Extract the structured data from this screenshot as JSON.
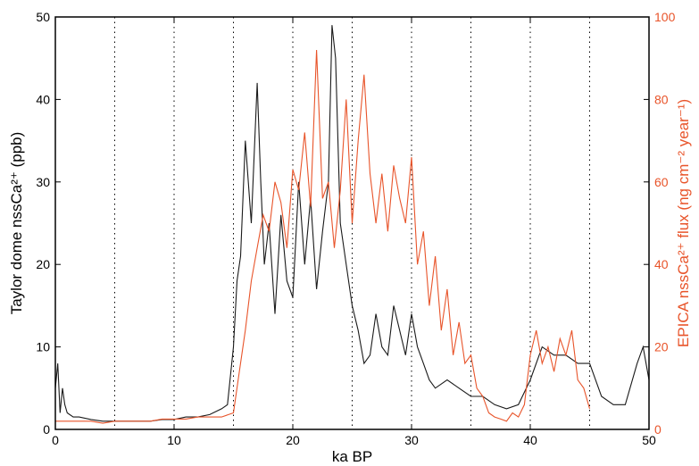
{
  "chart_data": {
    "type": "line",
    "title": "",
    "xlabel": "ka BP",
    "ylabel_left": "Taylor dome nssCa²⁺ (ppb)",
    "ylabel_right": "EPICA nssCa²⁺ flux (ng cm⁻² year⁻¹)",
    "xlim": [
      0,
      50
    ],
    "ylim_left": [
      0,
      50
    ],
    "ylim_right": [
      0,
      100
    ],
    "x_ticks": [
      "0",
      "10",
      "20",
      "30",
      "40",
      "50"
    ],
    "y_left_ticks": [
      "0",
      "10",
      "20",
      "30",
      "40",
      "50"
    ],
    "y_right_ticks": [
      "0",
      "20",
      "40",
      "60",
      "80",
      "100"
    ],
    "vertical_dotted_lines_at": [
      5,
      10,
      15,
      20,
      25,
      30,
      35,
      40,
      45
    ],
    "grid": false,
    "colors": {
      "left_series": "#1a1a1a",
      "right_series": "#e8542a",
      "frame": "#000000"
    },
    "series": [
      {
        "axis": "left",
        "color": "#1a1a1a",
        "x": [
          0,
          0.2,
          0.4,
          0.6,
          0.8,
          1,
          1.5,
          2,
          3,
          4,
          5,
          6,
          7,
          8,
          9,
          10,
          11,
          12,
          13,
          14,
          14.5,
          15,
          15.3,
          15.6,
          16,
          16.5,
          17,
          17.3,
          17.6,
          18,
          18.5,
          19,
          19.5,
          20,
          20.5,
          21,
          21.5,
          22,
          22.5,
          23,
          23.3,
          23.6,
          24,
          24.5,
          25,
          25.5,
          26,
          26.5,
          27,
          27.5,
          28,
          28.5,
          29,
          29.5,
          30,
          30.5,
          31,
          31.5,
          32,
          33,
          34,
          35,
          36,
          37,
          38,
          39,
          40,
          41,
          42,
          43,
          44,
          45,
          46,
          47,
          48,
          49,
          49.5,
          50
        ],
        "values": [
          5,
          8,
          2,
          5,
          3,
          2,
          1.5,
          1.5,
          1.2,
          1,
          1,
          1,
          1,
          1,
          1.2,
          1.2,
          1.5,
          1.5,
          1.8,
          2.5,
          3,
          10,
          18,
          21,
          35,
          25,
          42,
          30,
          20,
          25,
          14,
          26,
          18,
          16,
          30,
          20,
          28,
          17,
          24,
          30,
          49,
          45,
          25,
          20,
          15,
          12,
          8,
          9,
          14,
          10,
          9,
          15,
          12,
          9,
          14,
          10,
          8,
          6,
          5,
          6,
          5,
          4,
          4,
          3,
          2.5,
          3,
          6,
          10,
          9,
          9,
          8,
          8,
          4,
          3,
          3,
          8,
          10,
          6
        ]
      },
      {
        "axis": "right",
        "color": "#e8542a",
        "x": [
          0,
          1,
          2,
          3,
          4,
          5,
          6,
          7,
          8,
          9,
          10,
          11,
          12,
          13,
          14,
          15,
          15.5,
          16,
          16.5,
          17,
          17.5,
          18,
          18.5,
          19,
          19.5,
          20,
          20.5,
          21,
          21.5,
          22,
          22.5,
          23,
          23.5,
          24,
          24.5,
          25,
          25.5,
          26,
          26.5,
          27,
          27.5,
          28,
          28.5,
          29,
          29.5,
          30,
          30.5,
          31,
          31.5,
          32,
          32.5,
          33,
          33.5,
          34,
          34.5,
          35,
          35.5,
          36,
          36.5,
          37,
          37.5,
          38,
          38.5,
          39,
          39.5,
          40,
          40.5,
          41,
          41.5,
          42,
          42.5,
          43,
          43.5,
          44,
          44.5,
          45
        ],
        "values": [
          2,
          2,
          2,
          2,
          1.5,
          2,
          2,
          2,
          2,
          2.5,
          2.5,
          2.5,
          3,
          3,
          3,
          4,
          14,
          24,
          36,
          44,
          52,
          48,
          60,
          55,
          44,
          63,
          58,
          72,
          54,
          92,
          56,
          60,
          44,
          58,
          80,
          50,
          70,
          86,
          62,
          50,
          62,
          48,
          64,
          56,
          50,
          66,
          40,
          48,
          30,
          42,
          24,
          34,
          18,
          26,
          16,
          18,
          10,
          8,
          4,
          3,
          2.5,
          2,
          4,
          3,
          6,
          18,
          24,
          16,
          20,
          14,
          22,
          18,
          24,
          12,
          10,
          5
        ]
      }
    ]
  }
}
